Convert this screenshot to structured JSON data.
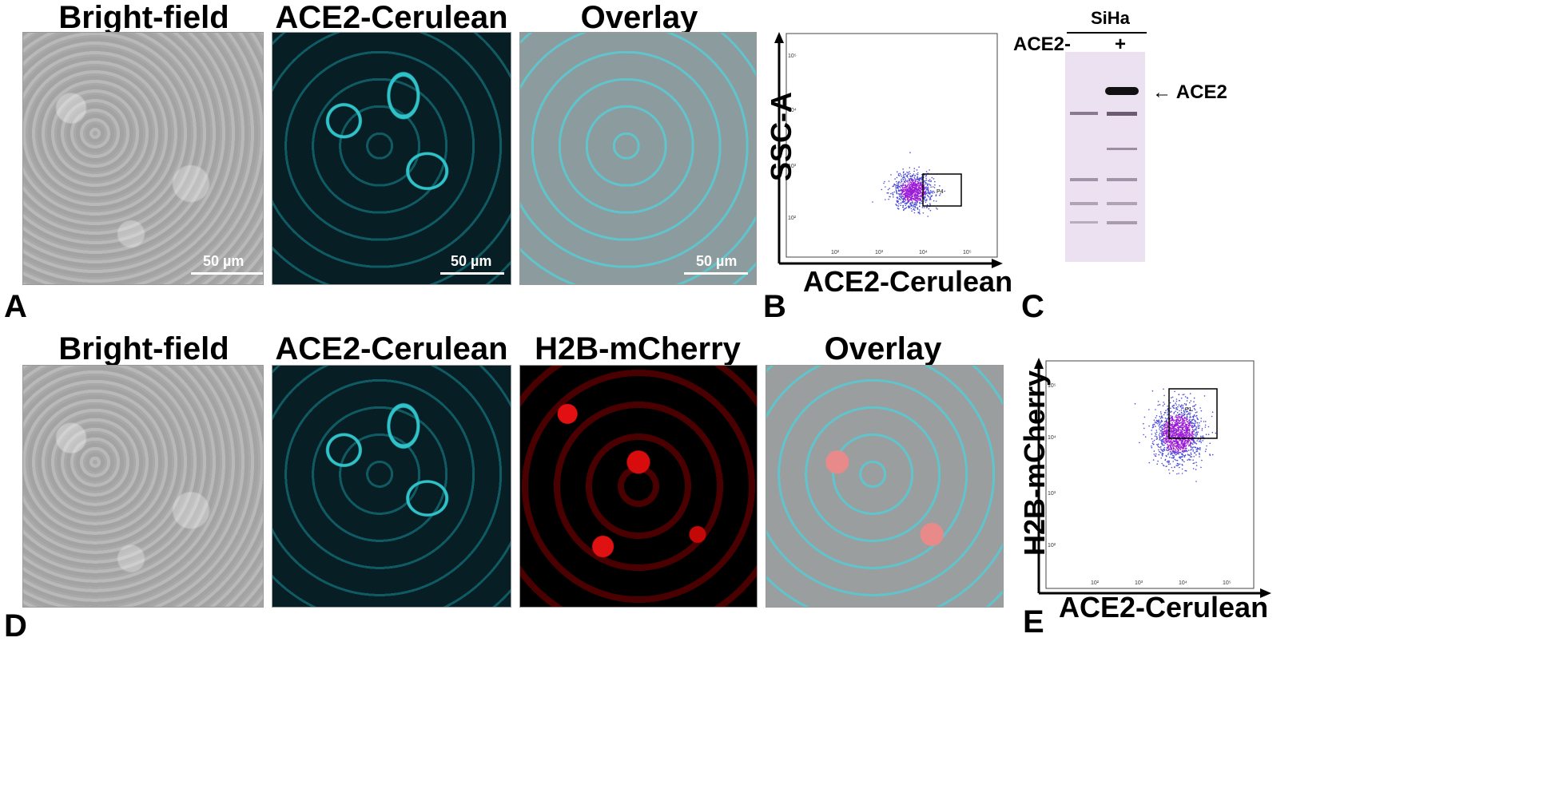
{
  "row1": {
    "titles": [
      "Bright-field",
      "ACE2-Cerulean",
      "Overlay"
    ],
    "scalebar": "50 µm",
    "letter": "A"
  },
  "panelB": {
    "letter": "B",
    "xlabel": "ACE2-Cerulean",
    "ylabel": "SSC-A",
    "gate_label": "P4",
    "xticks": [
      "10²",
      "10³",
      "10⁴",
      "10⁵"
    ],
    "yticks": [
      "10²",
      "10³",
      "10⁴",
      "10⁵"
    ]
  },
  "panelC": {
    "letter": "C",
    "cell_line": "SiHa",
    "lane_header": "ACE2-",
    "lane_plus": "+",
    "band_label": "← ACE2"
  },
  "row2": {
    "titles": [
      "Bright-field",
      "ACE2-Cerulean",
      "H2B-mCherry",
      "Overlay"
    ],
    "letter": "D"
  },
  "panelE": {
    "letter": "E",
    "xlabel": "ACE2-Cerulean",
    "ylabel": "H2B-mCherry",
    "gate_label": "P1",
    "xticks": [
      "10²",
      "10³",
      "10⁴",
      "10⁵"
    ],
    "yticks": [
      "10²",
      "10³",
      "10⁴",
      "10⁵"
    ]
  },
  "colors": {
    "cerulean": "#2fc2c8",
    "mcherry": "#e21010",
    "dots": "#9b1bd6",
    "dots_outer": "#4a4ad8"
  },
  "chart_data": [
    {
      "type": "scatter",
      "panel": "B",
      "xlabel": "ACE2-Cerulean",
      "ylabel": "SSC-A",
      "xscale": "log",
      "yscale": "log",
      "xlim": [
        10,
        1000000
      ],
      "ylim": [
        10,
        1000000
      ],
      "gate": {
        "name": "P4",
        "x": [
          5000,
          30000
        ],
        "y": [
          150,
          700
        ]
      },
      "cluster_center": [
        10000,
        300
      ]
    },
    {
      "type": "scatter",
      "panel": "E",
      "xlabel": "ACE2-Cerulean",
      "ylabel": "H2B-mCherry",
      "xscale": "log",
      "yscale": "log",
      "xlim": [
        10,
        1000000
      ],
      "ylim": [
        10,
        1000000
      ],
      "gate": {
        "name": "P1",
        "x": [
          7000,
          40000
        ],
        "y": [
          3500,
          90000
        ]
      },
      "cluster_center": [
        15000,
        25000
      ]
    }
  ]
}
